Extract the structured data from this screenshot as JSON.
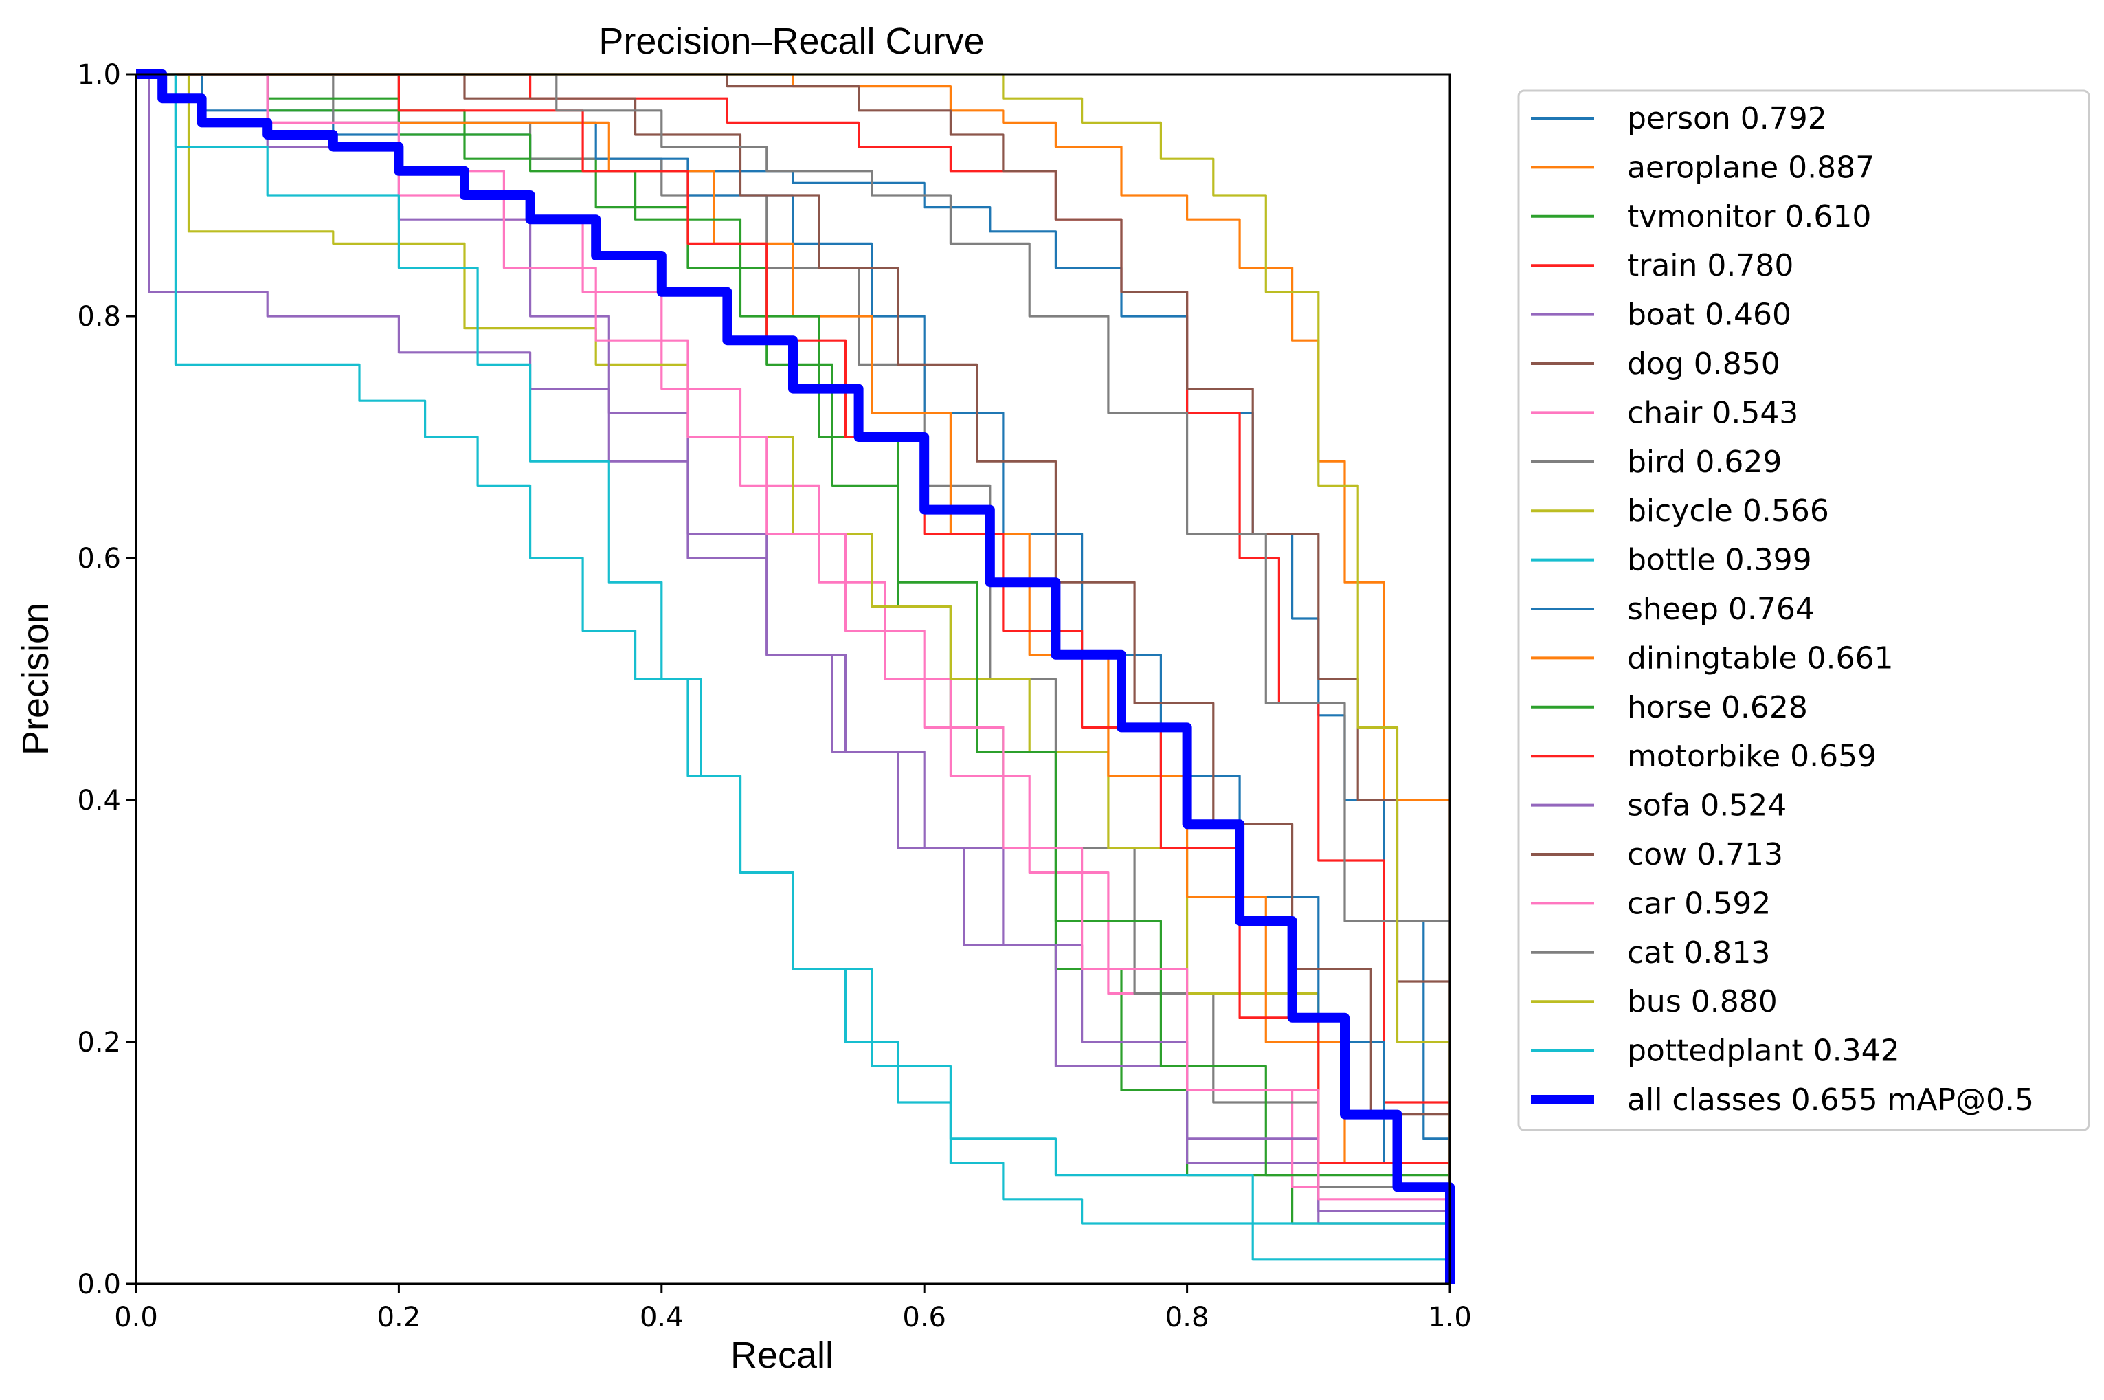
{
  "chart_data": {
    "type": "line",
    "title": "Precision–Recall Curve",
    "xlabel": "Recall",
    "ylabel": "Precision",
    "xlim": [
      0.0,
      1.0
    ],
    "ylim": [
      0.0,
      1.0
    ],
    "xticks": [
      "0.0",
      "0.2",
      "0.4",
      "0.6",
      "0.8",
      "1.0"
    ],
    "yticks": [
      "0.0",
      "0.2",
      "0.4",
      "0.6",
      "0.8",
      "1.0"
    ],
    "legend_position": "outside-right",
    "series": [
      {
        "name": "person",
        "value": "0.792",
        "label": "person 0.792",
        "color": "#1f77b4",
        "x": [
          0,
          0.05,
          0.15,
          0.3,
          0.4,
          0.5,
          0.6,
          0.65,
          0.7,
          0.75,
          0.8,
          0.85,
          0.88,
          0.9,
          0.92,
          0.95,
          0.98,
          1.0
        ],
        "y": [
          1.0,
          0.97,
          0.95,
          0.93,
          0.92,
          0.91,
          0.89,
          0.87,
          0.84,
          0.8,
          0.72,
          0.62,
          0.55,
          0.47,
          0.4,
          0.3,
          0.12,
          0.0
        ]
      },
      {
        "name": "aeroplane",
        "value": "0.887",
        "label": "aeroplane 0.887",
        "color": "#ff7f0e",
        "x": [
          0,
          0.35,
          0.45,
          0.5,
          0.62,
          0.66,
          0.7,
          0.75,
          0.8,
          0.84,
          0.88,
          0.9,
          0.92,
          0.95,
          1.0
        ],
        "y": [
          1.0,
          1.0,
          1.0,
          0.99,
          0.97,
          0.96,
          0.94,
          0.9,
          0.88,
          0.84,
          0.78,
          0.68,
          0.58,
          0.4,
          0.0
        ]
      },
      {
        "name": "tvmonitor",
        "value": "0.610",
        "label": "tvmonitor 0.610",
        "color": "#2ca02c",
        "x": [
          0,
          0.1,
          0.25,
          0.35,
          0.42,
          0.48,
          0.53,
          0.58,
          0.62,
          0.66,
          0.7,
          0.75,
          0.8,
          0.88,
          1.0
        ],
        "y": [
          1.0,
          0.97,
          0.93,
          0.89,
          0.84,
          0.76,
          0.66,
          0.56,
          0.46,
          0.36,
          0.26,
          0.16,
          0.09,
          0.05,
          0.0
        ]
      },
      {
        "name": "train",
        "value": "0.780",
        "label": "train 0.780",
        "color": "#ff2020",
        "x": [
          0,
          0.18,
          0.3,
          0.45,
          0.55,
          0.62,
          0.7,
          0.75,
          0.8,
          0.84,
          0.87,
          0.9,
          0.95,
          1.0
        ],
        "y": [
          1.0,
          1.0,
          0.98,
          0.96,
          0.94,
          0.92,
          0.88,
          0.82,
          0.72,
          0.6,
          0.48,
          0.35,
          0.15,
          0.0
        ]
      },
      {
        "name": "boat",
        "value": "0.460",
        "label": "boat 0.460",
        "color": "#9467bd",
        "x": [
          0,
          0.01,
          0.1,
          0.2,
          0.3,
          0.36,
          0.42,
          0.48,
          0.53,
          0.58,
          0.63,
          0.7,
          0.8,
          0.9,
          1.0
        ],
        "y": [
          1.0,
          0.82,
          0.8,
          0.77,
          0.74,
          0.68,
          0.6,
          0.52,
          0.44,
          0.36,
          0.28,
          0.18,
          0.1,
          0.05,
          0.0
        ]
      },
      {
        "name": "dog",
        "value": "0.850",
        "label": "dog 0.850",
        "color": "#8c564b",
        "x": [
          0,
          0.3,
          0.45,
          0.55,
          0.62,
          0.66,
          0.7,
          0.75,
          0.8,
          0.85,
          0.9,
          0.93,
          0.96,
          1.0
        ],
        "y": [
          1.0,
          1.0,
          0.99,
          0.97,
          0.95,
          0.92,
          0.88,
          0.82,
          0.74,
          0.62,
          0.5,
          0.4,
          0.25,
          0.0
        ]
      },
      {
        "name": "chair",
        "value": "0.543",
        "label": "chair 0.543",
        "color": "#ff77c0",
        "x": [
          0,
          0.1,
          0.2,
          0.28,
          0.34,
          0.4,
          0.46,
          0.52,
          0.57,
          0.62,
          0.68,
          0.74,
          0.8,
          0.88,
          1.0
        ],
        "y": [
          1.0,
          0.96,
          0.92,
          0.88,
          0.82,
          0.74,
          0.66,
          0.58,
          0.5,
          0.42,
          0.34,
          0.24,
          0.16,
          0.08,
          0.0
        ]
      },
      {
        "name": "bird",
        "value": "0.629",
        "label": "bird 0.629",
        "color": "#7f7f7f",
        "x": [
          0,
          0.15,
          0.3,
          0.4,
          0.48,
          0.55,
          0.6,
          0.65,
          0.7,
          0.76,
          0.82,
          0.9,
          1.0
        ],
        "y": [
          1.0,
          0.96,
          0.93,
          0.9,
          0.84,
          0.76,
          0.66,
          0.5,
          0.36,
          0.24,
          0.15,
          0.08,
          0.0
        ]
      },
      {
        "name": "bicycle",
        "value": "0.566",
        "label": "bicycle 0.566",
        "color": "#bcbd22",
        "x": [
          0,
          0.04,
          0.15,
          0.25,
          0.35,
          0.42,
          0.5,
          0.56,
          0.62,
          0.68,
          0.74,
          0.8,
          0.9,
          1.0
        ],
        "y": [
          1.0,
          0.87,
          0.86,
          0.79,
          0.76,
          0.7,
          0.62,
          0.56,
          0.5,
          0.44,
          0.36,
          0.24,
          0.1,
          0.0
        ]
      },
      {
        "name": "bottle",
        "value": "0.399",
        "label": "bottle 0.399",
        "color": "#17becf",
        "x": [
          0,
          0.03,
          0.1,
          0.17,
          0.22,
          0.26,
          0.3,
          0.34,
          0.38,
          0.42,
          0.46,
          0.5,
          0.56,
          0.62,
          0.7,
          0.85,
          1.0
        ],
        "y": [
          1.0,
          0.76,
          0.76,
          0.73,
          0.7,
          0.66,
          0.6,
          0.54,
          0.5,
          0.42,
          0.34,
          0.26,
          0.18,
          0.12,
          0.09,
          0.05,
          0.0
        ]
      },
      {
        "name": "sheep",
        "value": "0.764",
        "label": "sheep 0.764",
        "color": "#1f77b4",
        "x": [
          0,
          0.2,
          0.35,
          0.42,
          0.5,
          0.56,
          0.6,
          0.66,
          0.72,
          0.78,
          0.84,
          0.9,
          0.95,
          1.0
        ],
        "y": [
          1.0,
          0.96,
          0.93,
          0.9,
          0.86,
          0.8,
          0.72,
          0.62,
          0.52,
          0.42,
          0.32,
          0.2,
          0.1,
          0.0
        ]
      },
      {
        "name": "diningtable",
        "value": "0.661",
        "label": "diningtable 0.661",
        "color": "#ff7f0e",
        "x": [
          0,
          0.2,
          0.36,
          0.44,
          0.5,
          0.56,
          0.62,
          0.68,
          0.74,
          0.8,
          0.86,
          0.92,
          1.0
        ],
        "y": [
          1.0,
          0.96,
          0.92,
          0.86,
          0.8,
          0.72,
          0.62,
          0.52,
          0.42,
          0.32,
          0.2,
          0.1,
          0.0
        ]
      },
      {
        "name": "horse",
        "value": "0.628",
        "label": "horse 0.628",
        "color": "#2ca02c",
        "x": [
          0,
          0.1,
          0.2,
          0.3,
          0.38,
          0.46,
          0.52,
          0.58,
          0.64,
          0.7,
          0.78,
          0.86,
          1.0
        ],
        "y": [
          1.0,
          0.98,
          0.95,
          0.92,
          0.88,
          0.8,
          0.7,
          0.58,
          0.44,
          0.3,
          0.18,
          0.09,
          0.0
        ]
      },
      {
        "name": "motorbike",
        "value": "0.659",
        "label": "motorbike 0.659",
        "color": "#ff2020",
        "x": [
          0,
          0.2,
          0.34,
          0.42,
          0.48,
          0.54,
          0.6,
          0.66,
          0.72,
          0.78,
          0.84,
          0.9,
          1.0
        ],
        "y": [
          1.0,
          0.97,
          0.92,
          0.86,
          0.78,
          0.7,
          0.62,
          0.54,
          0.46,
          0.36,
          0.22,
          0.1,
          0.0
        ]
      },
      {
        "name": "sofa",
        "value": "0.524",
        "label": "sofa 0.524",
        "color": "#9467bd",
        "x": [
          0,
          0.1,
          0.2,
          0.3,
          0.36,
          0.42,
          0.48,
          0.54,
          0.6,
          0.66,
          0.72,
          0.8,
          0.9,
          1.0
        ],
        "y": [
          1.0,
          0.94,
          0.88,
          0.8,
          0.72,
          0.62,
          0.52,
          0.44,
          0.36,
          0.28,
          0.2,
          0.12,
          0.06,
          0.0
        ]
      },
      {
        "name": "cow",
        "value": "0.713",
        "label": "cow 0.713",
        "color": "#8c564b",
        "x": [
          0,
          0.25,
          0.38,
          0.46,
          0.52,
          0.58,
          0.64,
          0.7,
          0.76,
          0.82,
          0.88,
          0.94,
          1.0
        ],
        "y": [
          1.0,
          0.98,
          0.95,
          0.9,
          0.84,
          0.76,
          0.68,
          0.58,
          0.48,
          0.38,
          0.26,
          0.14,
          0.0
        ]
      },
      {
        "name": "car",
        "value": "0.592",
        "label": "car 0.592",
        "color": "#ff77c0",
        "x": [
          0,
          0.1,
          0.2,
          0.28,
          0.35,
          0.42,
          0.48,
          0.54,
          0.6,
          0.66,
          0.72,
          0.8,
          0.9,
          1.0
        ],
        "y": [
          1.0,
          0.96,
          0.9,
          0.84,
          0.78,
          0.7,
          0.62,
          0.54,
          0.46,
          0.36,
          0.26,
          0.16,
          0.07,
          0.0
        ]
      },
      {
        "name": "cat",
        "value": "0.813",
        "label": "cat 0.813",
        "color": "#7f7f7f",
        "x": [
          0,
          0.2,
          0.32,
          0.4,
          0.48,
          0.56,
          0.62,
          0.68,
          0.74,
          0.8,
          0.86,
          0.92,
          1.0
        ],
        "y": [
          1.0,
          1.0,
          0.97,
          0.94,
          0.92,
          0.9,
          0.86,
          0.8,
          0.72,
          0.62,
          0.48,
          0.3,
          0.0
        ]
      },
      {
        "name": "bus",
        "value": "0.880",
        "label": "bus 0.880",
        "color": "#bcbd22",
        "x": [
          0,
          0.4,
          0.55,
          0.66,
          0.72,
          0.78,
          0.82,
          0.86,
          0.9,
          0.93,
          0.96,
          1.0
        ],
        "y": [
          1.0,
          1.0,
          1.0,
          0.98,
          0.96,
          0.93,
          0.9,
          0.82,
          0.66,
          0.46,
          0.2,
          0.0
        ]
      },
      {
        "name": "pottedplant",
        "value": "0.342",
        "label": "pottedplant 0.342",
        "color": "#17becf",
        "x": [
          0,
          0.03,
          0.1,
          0.2,
          0.26,
          0.3,
          0.36,
          0.4,
          0.43,
          0.46,
          0.5,
          0.54,
          0.58,
          0.62,
          0.66,
          0.72,
          0.85,
          1.0
        ],
        "y": [
          1.0,
          0.94,
          0.9,
          0.84,
          0.76,
          0.68,
          0.58,
          0.5,
          0.42,
          0.34,
          0.26,
          0.2,
          0.15,
          0.1,
          0.07,
          0.05,
          0.02,
          0.0
        ]
      },
      {
        "name": "all classes",
        "value": "0.655",
        "label": "all classes 0.655 mAP@0.5",
        "color": "#0000ff",
        "thick": true,
        "x": [
          0,
          0.02,
          0.05,
          0.1,
          0.15,
          0.2,
          0.25,
          0.3,
          0.35,
          0.4,
          0.45,
          0.5,
          0.55,
          0.6,
          0.65,
          0.7,
          0.75,
          0.8,
          0.84,
          0.88,
          0.92,
          0.96,
          1.0
        ],
        "y": [
          1.0,
          0.98,
          0.96,
          0.95,
          0.94,
          0.92,
          0.9,
          0.88,
          0.85,
          0.82,
          0.78,
          0.74,
          0.7,
          0.64,
          0.58,
          0.52,
          0.46,
          0.38,
          0.3,
          0.22,
          0.14,
          0.08,
          0.0
        ]
      }
    ]
  }
}
